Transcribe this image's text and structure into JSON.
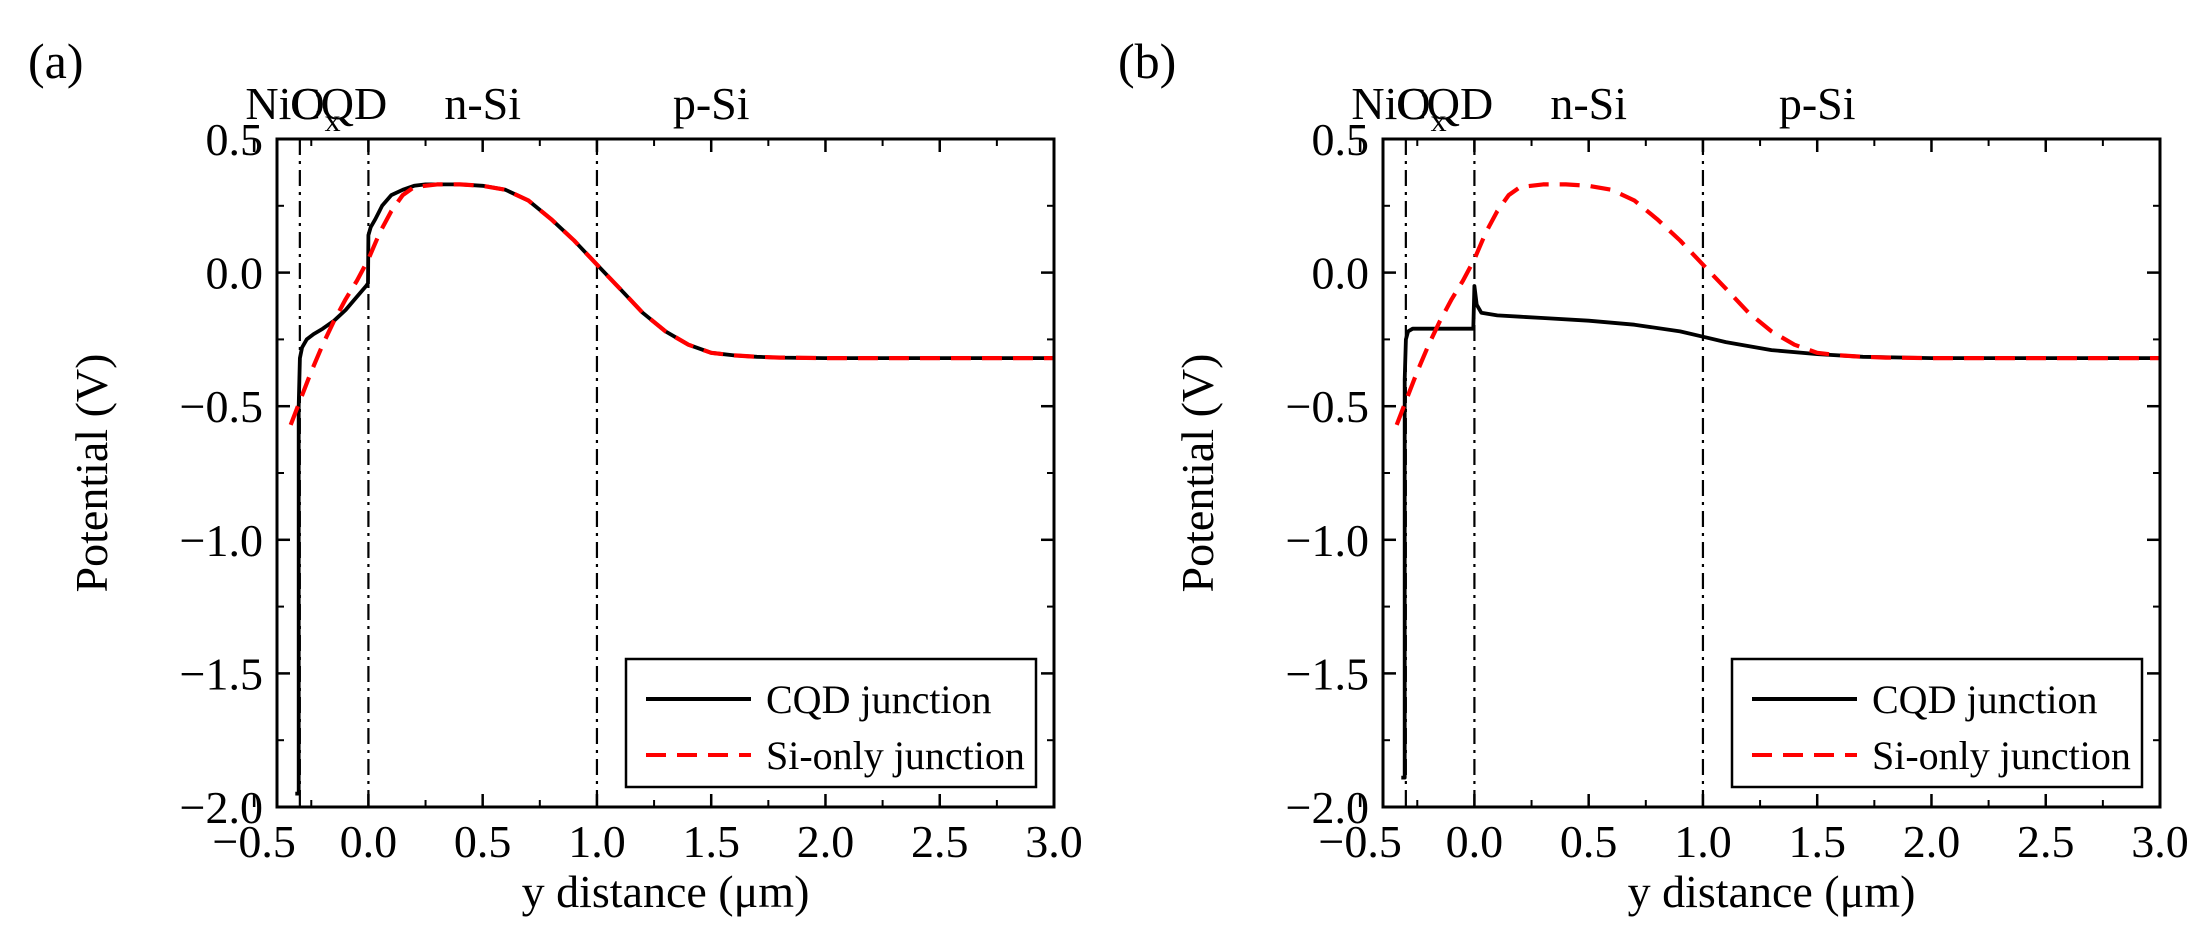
{
  "chart_data": [
    {
      "type": "line",
      "panel_label": "(a)",
      "xlabel": "y distance (μm)",
      "ylabel": "Potential (V)",
      "xlim": [
        -0.4,
        3.0
      ],
      "ylim": [
        -2.0,
        0.5
      ],
      "xticks": [
        -0.5,
        0.0,
        0.5,
        1.0,
        1.5,
        2.0,
        2.5,
        3.0
      ],
      "xtick_labels": [
        "−0.5",
        "0.0",
        "0.5",
        "1.0",
        "1.5",
        "2.0",
        "2.5",
        "3.0"
      ],
      "yticks": [
        0.5,
        0.0,
        -0.5,
        -1.0,
        -1.5,
        -2.0
      ],
      "ytick_labels": [
        "0.5",
        "0.0",
        "−0.5",
        "−1.0",
        "−1.5",
        "−2.0"
      ],
      "region_labels": [
        {
          "text": "NiO",
          "sub": "x",
          "x": -0.33
        },
        {
          "text": "CQD",
          "x": -0.13
        },
        {
          "text": "n-Si",
          "x": 0.5
        },
        {
          "text": "p-Si",
          "x": 1.5
        }
      ],
      "vlines": [
        -0.3,
        0.0,
        1.0
      ],
      "legend_position": "bottom-right",
      "series": [
        {
          "name": "CQD junction",
          "color": "#000000",
          "style": "solid",
          "x": [
            -0.32,
            -0.305,
            -0.305,
            -0.3,
            -0.29,
            -0.27,
            -0.24,
            -0.2,
            -0.15,
            -0.1,
            -0.05,
            -0.01,
            -0.002,
            0.0,
            0.01,
            0.03,
            0.06,
            0.1,
            0.15,
            0.2,
            0.25,
            0.3,
            0.4,
            0.5,
            0.6,
            0.7,
            0.8,
            0.9,
            1.0,
            1.1,
            1.2,
            1.3,
            1.4,
            1.5,
            1.6,
            1.7,
            1.8,
            2.0,
            2.5,
            3.0
          ],
          "y": [
            -1.95,
            -1.95,
            -0.5,
            -0.32,
            -0.28,
            -0.25,
            -0.23,
            -0.21,
            -0.18,
            -0.14,
            -0.09,
            -0.05,
            -0.04,
            0.14,
            0.17,
            0.2,
            0.25,
            0.29,
            0.31,
            0.325,
            0.33,
            0.33,
            0.33,
            0.325,
            0.31,
            0.27,
            0.2,
            0.12,
            0.03,
            -0.06,
            -0.15,
            -0.22,
            -0.27,
            -0.3,
            -0.31,
            -0.315,
            -0.318,
            -0.32,
            -0.32,
            -0.32
          ]
        },
        {
          "name": "Si-only junction",
          "color": "#ff0000",
          "style": "dashed",
          "x": [
            -0.34,
            -0.3,
            -0.25,
            -0.2,
            -0.15,
            -0.1,
            -0.05,
            0.0,
            0.05,
            0.1,
            0.15,
            0.2,
            0.3,
            0.4,
            0.5,
            0.6,
            0.7,
            0.8,
            0.9,
            1.0,
            1.1,
            1.2,
            1.3,
            1.4,
            1.5,
            1.6,
            1.7,
            1.8,
            2.0,
            2.5,
            3.0
          ],
          "y": [
            -0.57,
            -0.48,
            -0.37,
            -0.27,
            -0.18,
            -0.1,
            -0.03,
            0.05,
            0.15,
            0.23,
            0.29,
            0.32,
            0.33,
            0.33,
            0.325,
            0.31,
            0.27,
            0.2,
            0.12,
            0.03,
            -0.06,
            -0.15,
            -0.22,
            -0.27,
            -0.3,
            -0.31,
            -0.315,
            -0.318,
            -0.32,
            -0.32,
            -0.32
          ]
        }
      ]
    },
    {
      "type": "line",
      "panel_label": "(b)",
      "xlabel": "y distance (μm)",
      "ylabel": "Potential (V)",
      "xlim": [
        -0.4,
        3.0
      ],
      "ylim": [
        -2.0,
        0.5
      ],
      "xticks": [
        -0.5,
        0.0,
        0.5,
        1.0,
        1.5,
        2.0,
        2.5,
        3.0
      ],
      "xtick_labels": [
        "−0.5",
        "0.0",
        "0.5",
        "1.0",
        "1.5",
        "2.0",
        "2.5",
        "3.0"
      ],
      "yticks": [
        0.5,
        0.0,
        -0.5,
        -1.0,
        -1.5,
        -2.0
      ],
      "ytick_labels": [
        "0.5",
        "0.0",
        "−0.5",
        "−1.0",
        "−1.5",
        "−2.0"
      ],
      "region_labels": [
        {
          "text": "NiO",
          "sub": "x",
          "x": -0.33
        },
        {
          "text": "CQD",
          "x": -0.13
        },
        {
          "text": "n-Si",
          "x": 0.5
        },
        {
          "text": "p-Si",
          "x": 1.5
        }
      ],
      "vlines": [
        -0.3,
        0.0,
        1.0
      ],
      "legend_position": "bottom-right",
      "series": [
        {
          "name": "CQD junction",
          "color": "#000000",
          "style": "solid",
          "x": [
            -0.32,
            -0.305,
            -0.305,
            -0.3,
            -0.29,
            -0.27,
            -0.2,
            -0.1,
            -0.02,
            -0.005,
            0.0,
            0.01,
            0.03,
            0.1,
            0.2,
            0.3,
            0.5,
            0.7,
            0.9,
            1.0,
            1.1,
            1.2,
            1.3,
            1.5,
            1.7,
            2.0,
            2.5,
            3.0
          ],
          "y": [
            -1.89,
            -1.89,
            -0.4,
            -0.25,
            -0.22,
            -0.21,
            -0.21,
            -0.21,
            -0.21,
            -0.21,
            -0.05,
            -0.12,
            -0.15,
            -0.16,
            -0.165,
            -0.17,
            -0.18,
            -0.195,
            -0.22,
            -0.24,
            -0.26,
            -0.275,
            -0.29,
            -0.305,
            -0.315,
            -0.32,
            -0.32,
            -0.32
          ]
        },
        {
          "name": "Si-only junction",
          "color": "#ff0000",
          "style": "dashed",
          "x": [
            -0.34,
            -0.3,
            -0.25,
            -0.2,
            -0.15,
            -0.1,
            -0.05,
            0.0,
            0.05,
            0.1,
            0.15,
            0.2,
            0.3,
            0.4,
            0.5,
            0.6,
            0.7,
            0.8,
            0.9,
            1.0,
            1.1,
            1.2,
            1.3,
            1.4,
            1.5,
            1.6,
            1.7,
            1.8,
            2.0,
            2.5,
            3.0
          ],
          "y": [
            -0.57,
            -0.48,
            -0.37,
            -0.27,
            -0.18,
            -0.1,
            -0.03,
            0.05,
            0.15,
            0.23,
            0.29,
            0.32,
            0.33,
            0.33,
            0.325,
            0.31,
            0.27,
            0.2,
            0.12,
            0.03,
            -0.06,
            -0.15,
            -0.22,
            -0.27,
            -0.3,
            -0.31,
            -0.315,
            -0.318,
            -0.32,
            -0.32,
            -0.32
          ]
        }
      ]
    }
  ]
}
